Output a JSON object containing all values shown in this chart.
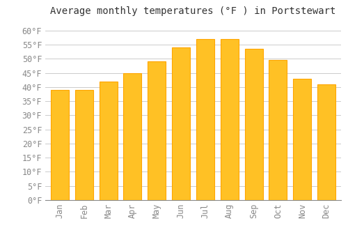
{
  "title": "Average monthly temperatures (°F ) in Portstewart",
  "months": [
    "Jan",
    "Feb",
    "Mar",
    "Apr",
    "May",
    "Jun",
    "Jul",
    "Aug",
    "Sep",
    "Oct",
    "Nov",
    "Dec"
  ],
  "values": [
    39,
    39,
    42,
    45,
    49,
    54,
    57,
    57,
    53.5,
    49.5,
    43,
    41
  ],
  "bar_color_face": "#FFC125",
  "bar_color_edge": "#FFA500",
  "background_color": "#FFFFFF",
  "grid_color": "#CCCCCC",
  "tick_label_color": "#888888",
  "title_color": "#333333",
  "ylim": [
    0,
    63
  ],
  "yticks": [
    0,
    5,
    10,
    15,
    20,
    25,
    30,
    35,
    40,
    45,
    50,
    55,
    60
  ],
  "title_fontsize": 10,
  "tick_fontsize": 8.5,
  "bar_width": 0.75
}
